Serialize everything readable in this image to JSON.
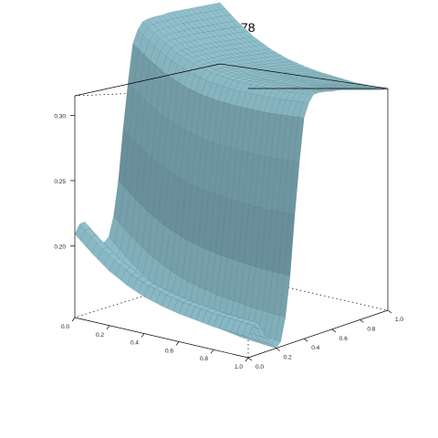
{
  "chart_data": {
    "type": "surface3d",
    "title": "ED(λ) = 4.78",
    "xlabel": "",
    "ylabel": "",
    "zlabel": "",
    "x_ticks": [
      "0.0",
      "0.2",
      "0.4",
      "0.6",
      "0.8",
      "1.0"
    ],
    "y_ticks": [
      "0.0",
      "0.2",
      "0.4",
      "0.6",
      "0.8",
      "1.0"
    ],
    "z_ticks": [
      "0.20",
      "0.25",
      "0.30"
    ],
    "xlim": [
      0,
      1
    ],
    "ylim": [
      0,
      1
    ],
    "zlim": [
      0.145,
      0.315
    ],
    "surface": {
      "x_profile_x": [
        0.0,
        0.1,
        0.2,
        0.3,
        0.4,
        0.5,
        0.6,
        0.7,
        0.8,
        0.9,
        1.0
      ],
      "x_profile_z": [
        0.218,
        0.205,
        0.194,
        0.186,
        0.18,
        0.176,
        0.173,
        0.171,
        0.169,
        0.168,
        0.167
      ],
      "y_profile_y": [
        0.0,
        0.05,
        0.1,
        0.15,
        0.2,
        0.25,
        0.3,
        0.35,
        0.4,
        0.45,
        0.5,
        0.55,
        0.6,
        0.65,
        0.7,
        0.75,
        0.8,
        0.85,
        0.9,
        0.95,
        1.0
      ],
      "y_profile_z": [
        0.158,
        0.168,
        0.16,
        0.15,
        0.145,
        0.15,
        0.19,
        0.25,
        0.295,
        0.31,
        0.312,
        0.313,
        0.313,
        0.314,
        0.314,
        0.314,
        0.314,
        0.314,
        0.314,
        0.314,
        0.314
      ]
    },
    "colors": {
      "surface_low": "#8fc0cc",
      "surface_high": "#4e6e78",
      "mesh": "#3c5a62",
      "box": "#000000"
    },
    "grid": false,
    "legend": "none"
  }
}
